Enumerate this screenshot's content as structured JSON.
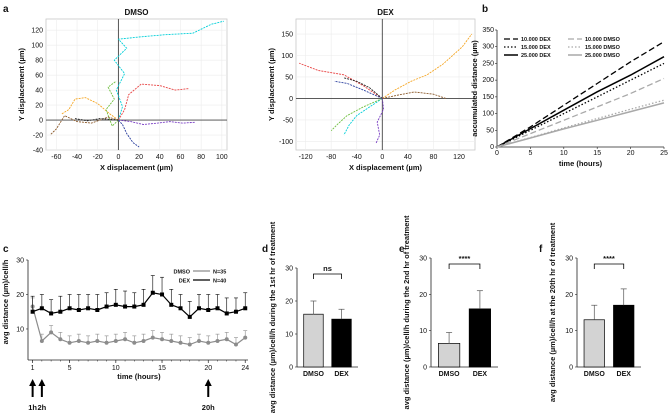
{
  "panel_labels": {
    "a": "a",
    "b": "b",
    "c": "c",
    "d": "d",
    "e": "e",
    "f": "f"
  },
  "chart_data": [
    {
      "panel": "a-left",
      "type": "scatter",
      "title": "DMSO",
      "xlabel": "X displacement (µm)",
      "ylabel": "Y displacement (µm)",
      "xlim": [
        -70,
        105
      ],
      "ylim": [
        -40,
        135
      ],
      "xticks": [
        -60,
        -40,
        -20,
        0,
        20,
        40,
        60,
        80,
        100
      ],
      "yticks": [
        -40,
        -20,
        0,
        20,
        40,
        60,
        80,
        100,
        120
      ],
      "colors": [
        "#00cfd8",
        "#e84545",
        "#f5a623",
        "#6fbf3f",
        "#7a3fc4",
        "#8b5a2b",
        "#222222",
        "#2a3f9e"
      ],
      "tracks": [
        [
          [
            0,
            0
          ],
          [
            4,
            18
          ],
          [
            -2,
            40
          ],
          [
            6,
            62
          ],
          [
            -4,
            80
          ],
          [
            8,
            96
          ],
          [
            0,
            108
          ],
          [
            20,
            111
          ],
          [
            45,
            114
          ],
          [
            72,
            116
          ],
          [
            90,
            128
          ],
          [
            102,
            132
          ]
        ],
        [
          [
            0,
            0
          ],
          [
            6,
            14
          ],
          [
            10,
            34
          ],
          [
            22,
            48
          ],
          [
            40,
            46
          ],
          [
            55,
            40
          ],
          [
            68,
            42
          ]
        ],
        [
          [
            0,
            0
          ],
          [
            -8,
            8
          ],
          [
            -20,
            22
          ],
          [
            -32,
            30
          ],
          [
            -42,
            28
          ],
          [
            -48,
            14
          ],
          [
            -55,
            8
          ]
        ],
        [
          [
            0,
            0
          ],
          [
            -6,
            -8
          ],
          [
            -12,
            14
          ],
          [
            -4,
            28
          ],
          [
            -10,
            44
          ],
          [
            -2,
            52
          ]
        ],
        [
          [
            0,
            0
          ],
          [
            12,
            -2
          ],
          [
            24,
            -6
          ],
          [
            38,
            -4
          ],
          [
            50,
            -2
          ],
          [
            62,
            -4
          ],
          [
            74,
            -3
          ]
        ],
        [
          [
            0,
            0
          ],
          [
            -10,
            4
          ],
          [
            -26,
            -4
          ],
          [
            -40,
            -2
          ],
          [
            -52,
            6
          ],
          [
            -60,
            -12
          ],
          [
            -66,
            -20
          ]
        ],
        [
          [
            0,
            0
          ],
          [
            -18,
            2
          ],
          [
            -30,
            -1
          ],
          [
            -42,
            2
          ]
        ],
        [
          [
            0,
            0
          ],
          [
            4,
            -6
          ],
          [
            8,
            -18
          ],
          [
            14,
            -30
          ],
          [
            20,
            -36
          ]
        ]
      ]
    },
    {
      "panel": "a-right",
      "type": "scatter",
      "title": "DEX",
      "xlabel": "X displacement (µm)",
      "ylabel": "Y displacement (µm)",
      "xlim": [
        -135,
        145
      ],
      "ylim": [
        -120,
        185
      ],
      "xticks": [
        -120,
        -80,
        -40,
        0,
        40,
        80,
        120
      ],
      "yticks": [
        -100,
        -50,
        0,
        50,
        100,
        150
      ],
      "colors": [
        "#00cfd8",
        "#e84545",
        "#f5a623",
        "#6fbf3f",
        "#7a3fc4",
        "#8b5a2b",
        "#222222",
        "#2a3f9e"
      ],
      "tracks": [
        [
          [
            0,
            0
          ],
          [
            -20,
            -20
          ],
          [
            -40,
            -40
          ],
          [
            -52,
            -62
          ],
          [
            -60,
            -85
          ]
        ],
        [
          [
            0,
            0
          ],
          [
            -30,
            30
          ],
          [
            -60,
            55
          ],
          [
            -100,
            65
          ],
          [
            -130,
            82
          ]
        ],
        [
          [
            0,
            0
          ],
          [
            20,
            20
          ],
          [
            45,
            40
          ],
          [
            70,
            55
          ],
          [
            95,
            80
          ],
          [
            110,
            100
          ],
          [
            125,
            120
          ],
          [
            140,
            150
          ]
        ],
        [
          [
            0,
            0
          ],
          [
            -30,
            -20
          ],
          [
            -55,
            -40
          ],
          [
            -70,
            -60
          ],
          [
            -80,
            -75
          ]
        ],
        [
          [
            0,
            0
          ],
          [
            2,
            -25
          ],
          [
            -8,
            -55
          ],
          [
            -4,
            -85
          ],
          [
            -10,
            -105
          ]
        ],
        [
          [
            0,
            0
          ],
          [
            25,
            8
          ],
          [
            50,
            15
          ],
          [
            80,
            10
          ],
          [
            100,
            0
          ]
        ],
        [
          [
            0,
            0
          ],
          [
            -20,
            25
          ],
          [
            -40,
            40
          ],
          [
            -60,
            48
          ]
        ],
        [
          [
            0,
            0
          ],
          [
            -30,
            20
          ],
          [
            -55,
            35
          ],
          [
            -75,
            40
          ]
        ]
      ]
    },
    {
      "panel": "b",
      "type": "line",
      "xlabel": "time (hours)",
      "ylabel": "accumulated distance (µm)",
      "xlim": [
        0,
        25
      ],
      "ylim": [
        0,
        350
      ],
      "xticks": [
        0,
        5,
        10,
        15,
        20,
        25
      ],
      "yticks": [
        0,
        50,
        100,
        150,
        200,
        250,
        300,
        350
      ],
      "series": [
        {
          "name": "10.000 DEX",
          "color": "#000000",
          "dash": "6,3",
          "width": 1.3,
          "x": [
            0,
            5,
            10,
            15,
            20,
            25
          ],
          "values": [
            0,
            60,
            125,
            190,
            255,
            315
          ]
        },
        {
          "name": "15.000 DEX",
          "color": "#000000",
          "dash": "1.5,2",
          "width": 1.3,
          "x": [
            0,
            5,
            10,
            15,
            20,
            25
          ],
          "values": [
            0,
            50,
            100,
            150,
            200,
            250
          ]
        },
        {
          "name": "25.000 DEX",
          "color": "#000000",
          "dash": "",
          "width": 1.5,
          "x": [
            0,
            5,
            10,
            15,
            20,
            25
          ],
          "values": [
            0,
            55,
            110,
            165,
            215,
            270
          ]
        },
        {
          "name": "10.000 DMSO",
          "color": "#a9a9a9",
          "dash": "6,3",
          "width": 1.3,
          "x": [
            0,
            5,
            10,
            15,
            20,
            25
          ],
          "values": [
            0,
            40,
            80,
            120,
            160,
            205
          ]
        },
        {
          "name": "15.000 DMSO",
          "color": "#a9a9a9",
          "dash": "1.5,2",
          "width": 1.3,
          "x": [
            0,
            5,
            10,
            15,
            20,
            25
          ],
          "values": [
            0,
            28,
            57,
            85,
            113,
            140
          ]
        },
        {
          "name": "25.000 DMSO",
          "color": "#a9a9a9",
          "dash": "",
          "width": 1.5,
          "x": [
            0,
            5,
            10,
            15,
            20,
            25
          ],
          "values": [
            0,
            27,
            54,
            80,
            106,
            132
          ]
        }
      ]
    },
    {
      "panel": "c",
      "type": "line",
      "xlabel": "time (hours)",
      "ylabel": "avg distance (µm)/cell/h",
      "xlim": [
        0.5,
        24.3
      ],
      "ylim": [
        1,
        30
      ],
      "xticks": [
        1,
        5,
        10,
        15,
        20,
        24
      ],
      "yticks": [
        10,
        20,
        30
      ],
      "series": [
        {
          "name": "DMSO",
          "n_label": "N=35",
          "color": "#8c8c8c",
          "marker": "circle",
          "x": [
            1,
            2,
            3,
            4,
            5,
            6,
            7,
            8,
            9,
            10,
            11,
            12,
            13,
            14,
            15,
            16,
            17,
            18,
            19,
            20,
            21,
            22,
            23,
            24
          ],
          "values": [
            16.5,
            6.5,
            9.0,
            7.0,
            6.0,
            6.5,
            6.0,
            6.5,
            6.0,
            6.5,
            7.0,
            6.0,
            6.5,
            7.5,
            7.0,
            6.5,
            6.0,
            5.5,
            6.5,
            6.0,
            6.5,
            7.0,
            5.5,
            7.5
          ],
          "err": [
            2.5,
            2.0,
            2.0,
            2.0,
            2.0,
            2.0,
            2.0,
            2.0,
            2.0,
            2.0,
            2.0,
            2.0,
            2.0,
            2.0,
            2.0,
            2.0,
            2.0,
            2.0,
            2.0,
            2.0,
            2.0,
            2.0,
            2.0,
            2.0
          ]
        },
        {
          "name": "DEX",
          "n_label": "N=40",
          "color": "#000000",
          "marker": "square",
          "x": [
            1,
            2,
            3,
            4,
            5,
            6,
            7,
            8,
            9,
            10,
            11,
            12,
            13,
            14,
            15,
            16,
            17,
            18,
            19,
            20,
            21,
            22,
            23,
            24
          ],
          "values": [
            15,
            16,
            14.5,
            15,
            16,
            15.5,
            16,
            15.5,
            16.5,
            17,
            16.5,
            16.5,
            17,
            20.5,
            20,
            17,
            16,
            13.5,
            16,
            15.5,
            16,
            14.5,
            15,
            16
          ],
          "err": [
            4.5,
            4.0,
            4.0,
            4.5,
            4.0,
            4.5,
            4.0,
            4.5,
            4.0,
            4.5,
            4.5,
            4.0,
            4.5,
            5.0,
            5.0,
            4.5,
            4.0,
            4.5,
            4.0,
            4.5,
            4.0,
            4.5,
            4.0,
            4.5
          ]
        }
      ],
      "arrows": [
        {
          "x": 1,
          "label": "1h"
        },
        {
          "x": 2,
          "label": "2h"
        },
        {
          "x": 20,
          "label": "20h"
        }
      ]
    },
    {
      "panel": "d",
      "type": "bar",
      "categories": [
        "DMSO",
        "DEX"
      ],
      "values": [
        16,
        14.5
      ],
      "err": [
        4,
        3
      ],
      "colors": [
        "#d3d3d3",
        "#000000"
      ],
      "ylabel": "avg distance (µm)/cell/h during the 1st hr of treatment",
      "ylim": [
        0,
        30
      ],
      "yticks": [
        0,
        10,
        20,
        30
      ],
      "significance": "ns"
    },
    {
      "panel": "e",
      "type": "bar",
      "categories": [
        "DMSO",
        "DEX"
      ],
      "values": [
        6.5,
        16
      ],
      "err": [
        3,
        5
      ],
      "colors": [
        "#d3d3d3",
        "#000000"
      ],
      "ylabel": "avg distance (µm)/cell/h during the 2nd hr of treatment",
      "ylim": [
        0,
        30
      ],
      "yticks": [
        0,
        10,
        20,
        30
      ],
      "significance": "****"
    },
    {
      "panel": "f",
      "type": "bar",
      "categories": [
        "DMSO",
        "DEX"
      ],
      "values": [
        13,
        17
      ],
      "err": [
        4,
        4.5
      ],
      "colors": [
        "#d3d3d3",
        "#000000"
      ],
      "ylabel": "avg distance (µm)/cell/h at the 20th hr of treatment",
      "ylim": [
        0,
        30
      ],
      "yticks": [
        0,
        10,
        20,
        30
      ],
      "significance": "****"
    }
  ]
}
